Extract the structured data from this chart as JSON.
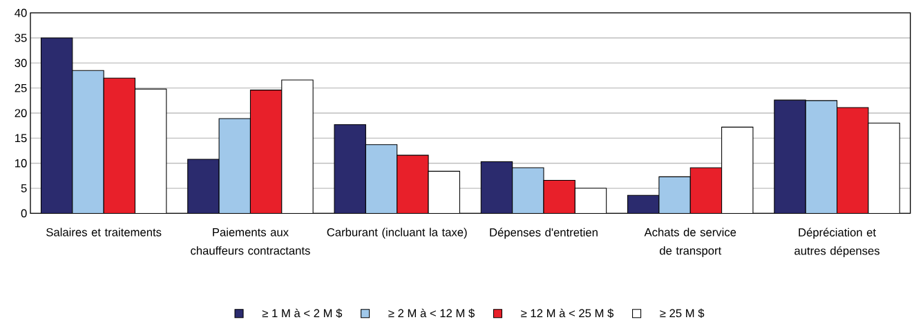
{
  "chart_data": {
    "type": "bar",
    "categories": [
      "Salaires et traitements",
      "Paiements aux chauffeurs contractants",
      "Carburant (incluant la taxe)",
      "Dépenses d'entretien",
      "Achats de service de transport",
      "Dépréciation et autres dépenses"
    ],
    "series": [
      {
        "name": "≥ 1 M à < 2 M $",
        "color": "#2b2b6e",
        "values": [
          35,
          10.8,
          17.7,
          10.3,
          3.6,
          22.6
        ]
      },
      {
        "name": "≥ 2 M à < 12 M $",
        "color": "#a0c8ea",
        "values": [
          28.5,
          18.9,
          13.7,
          9.1,
          7.3,
          22.5
        ]
      },
      {
        "name": "≥ 12 M à < 25 M $",
        "color": "#e8202a",
        "values": [
          27,
          24.6,
          11.6,
          6.6,
          9.1,
          21.1
        ]
      },
      {
        "name": "≥ 25 M $",
        "color": "#ffffff",
        "values": [
          24.8,
          26.6,
          8.4,
          5,
          17.2,
          18
        ]
      }
    ],
    "ylim": [
      0,
      40
    ],
    "yticks": [
      0,
      5,
      10,
      15,
      20,
      25,
      30,
      35,
      40
    ],
    "grid": "y",
    "legend": "bottom"
  }
}
